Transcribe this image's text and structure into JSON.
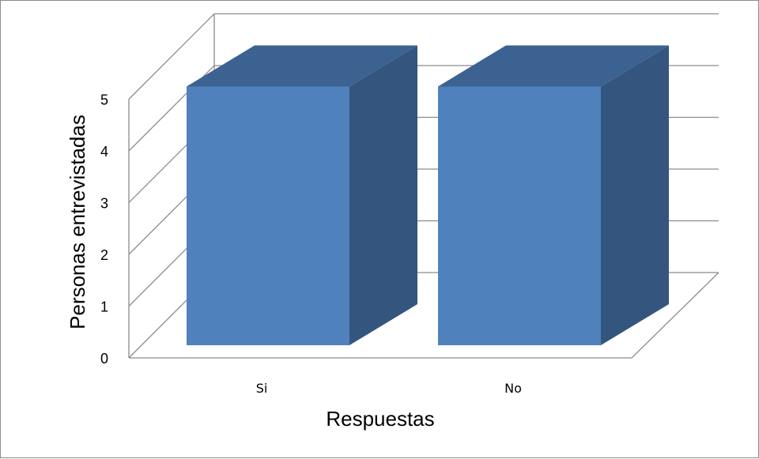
{
  "chart_data": {
    "type": "bar",
    "style": "3d-column",
    "categories": [
      "Si",
      "No"
    ],
    "values": [
      5,
      5
    ],
    "xlabel": "Respuestas",
    "ylabel": "Personas entrevistadas",
    "ylim": [
      0,
      5
    ],
    "yticks": [
      "0",
      "1",
      "2",
      "3",
      "4",
      "5"
    ],
    "grid": true,
    "legend": "none",
    "colors": {
      "front": "#4f81bd",
      "top": "#3b6290",
      "side": "#34567e",
      "grid": "#8c8c8c"
    }
  }
}
